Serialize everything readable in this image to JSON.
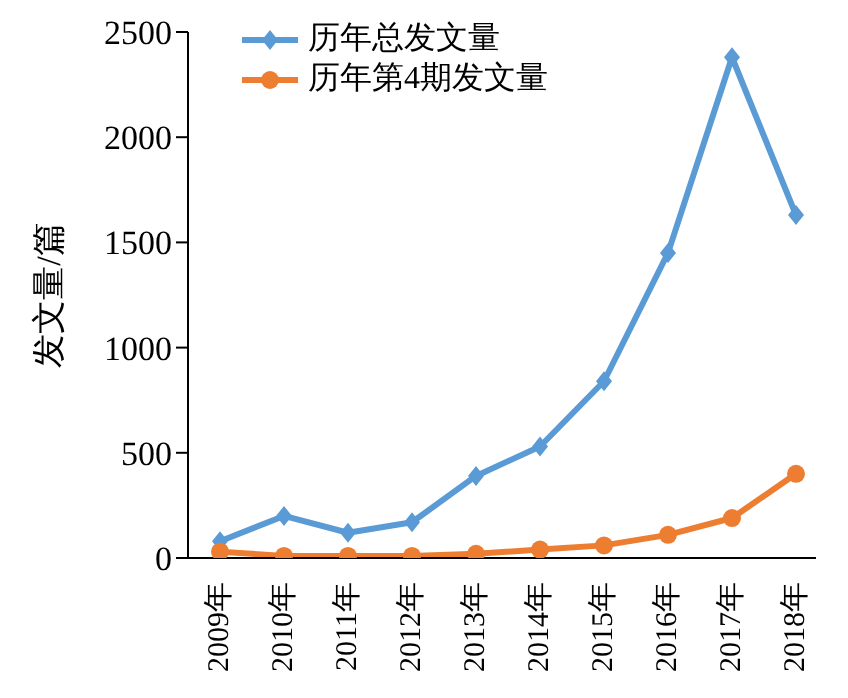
{
  "chart_data": {
    "type": "line",
    "ylabel": "发文量/篇",
    "categories": [
      "2009年",
      "2010年",
      "2011年",
      "2012年",
      "2013年",
      "2014年",
      "2015年",
      "2016年",
      "2017年",
      "2018年"
    ],
    "series": [
      {
        "name": "历年总发文量",
        "color": "#5b9bd5",
        "marker": "diamond",
        "values": [
          80,
          200,
          120,
          170,
          390,
          530,
          840,
          1450,
          2380,
          1630
        ]
      },
      {
        "name": "历年第4期发文量",
        "color": "#ed7d31",
        "marker": "circle",
        "values": [
          30,
          10,
          10,
          10,
          20,
          40,
          60,
          110,
          190,
          400
        ]
      }
    ],
    "ylim": [
      0,
      2500
    ],
    "yticks": [
      0,
      500,
      1000,
      1500,
      2000,
      2500
    ],
    "grid": false,
    "legend": "top"
  }
}
